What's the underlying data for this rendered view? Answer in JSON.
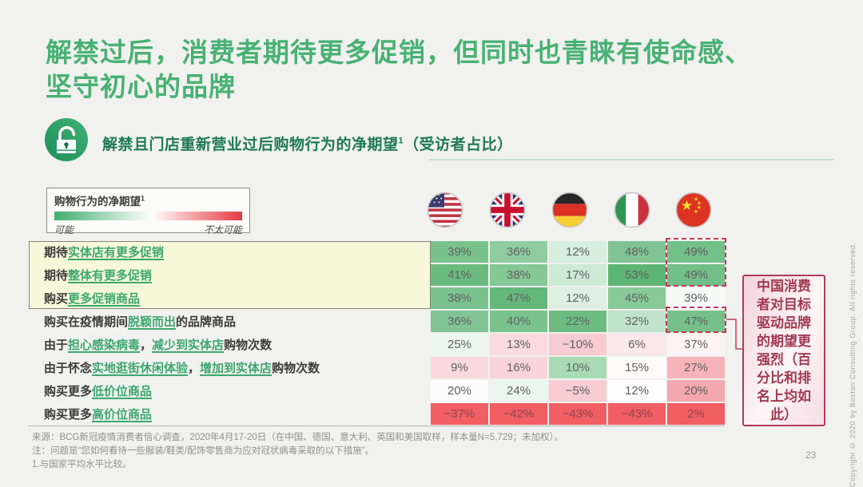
{
  "slide": {
    "title_lines": [
      "解禁过后，消费者期待更多促销，但同时也青睐有使命感、",
      "坚守初心的品牌"
    ],
    "page_number": "23",
    "copyright_vertical": "Copyright © 2020 by Boston Consulting Group. All rights reserved."
  },
  "header": {
    "icon": "unlocked-padlock-icon",
    "subtitle_main": "解禁且门店重新营业过后购物行为的净期望",
    "subtitle_sup": "1",
    "subtitle_tail": "（受访者占比）"
  },
  "legend": {
    "title": "购物行为的净期望",
    "title_sup": "1",
    "left_label": "可能",
    "right_label": "不太可能",
    "gradient_colors": [
      "#44ae6f",
      "#ffffff",
      "#e63940"
    ]
  },
  "annotation": {
    "text": "中国消费者对目标驱动品牌的期望更强烈（百分比和排名上均如此）",
    "border_color": "#b23a59",
    "text_color": "#a23a52",
    "dash_color": "#c23a55"
  },
  "notes": [
    "来源：BCG新冠疫情消费者信心调查，2020年4月17-20日（在中国、德国、意大利、英国和美国取样，样本量N=5,729；未加权）。",
    "注：问题是“您如何看待一些服装/鞋类/配饰零售商为应对冠状病毒采取的以下措施”。",
    "1.与国家平均水平比较。"
  ],
  "chart_data": {
    "type": "heatmap",
    "title": "解禁且门店重新营业过后购物行为的净期望1（受访者占比）",
    "legend": {
      "low": "不太可能",
      "high": "可能"
    },
    "columns": [
      "us-flag",
      "uk-flag",
      "germany-flag",
      "italy-flag",
      "china-flag"
    ],
    "value_text_color": "#5f6163",
    "negative_row_text_color": "#8f474d",
    "rows": [
      {
        "highlighted": true,
        "label_segments": [
          {
            "text": "期待",
            "emph": false
          },
          {
            "text": "实体店有更多促销",
            "emph": true
          }
        ],
        "values": [
          "39%",
          "36%",
          "12%",
          "48%",
          "49%"
        ],
        "colors": [
          "#79c28c",
          "#90cc9f",
          "#d8eedd",
          "#7fc492",
          "#74c089"
        ]
      },
      {
        "highlighted": true,
        "label_segments": [
          {
            "text": "期待",
            "emph": false
          },
          {
            "text": "整体有更多促销",
            "emph": true
          }
        ],
        "values": [
          "41%",
          "38%",
          "17%",
          "53%",
          "49%"
        ],
        "colors": [
          "#6bbb80",
          "#85c795",
          "#cdead5",
          "#5db575",
          "#72bf87"
        ]
      },
      {
        "highlighted": true,
        "label_segments": [
          {
            "text": "购买",
            "emph": false
          },
          {
            "text": "更多促销商品",
            "emph": true
          }
        ],
        "values": [
          "38%",
          "47%",
          "12%",
          "45%",
          "39%"
        ],
        "colors": [
          "#7bc38e",
          "#64b87b",
          "#def0e2",
          "#88c998",
          "#f7fbf8"
        ]
      },
      {
        "highlighted": false,
        "label_segments": [
          {
            "text": "购买在疫情期间",
            "emph": false
          },
          {
            "text": "脱颖而出",
            "emph": true
          },
          {
            "text": "的品牌商品",
            "emph": false
          }
        ],
        "values": [
          "36%",
          "40%",
          "22%",
          "32%",
          "47%"
        ],
        "colors": [
          "#80c593",
          "#7bc38e",
          "#6dbd83",
          "#c2e3cb",
          "#76c18b"
        ]
      },
      {
        "highlighted": false,
        "label_segments": [
          {
            "text": "由于",
            "emph": false
          },
          {
            "text": "担心感染病毒",
            "emph": true
          },
          {
            "text": "，",
            "emph": false
          },
          {
            "text": "减少到实体店",
            "emph": true
          },
          {
            "text": "购物次数",
            "emph": false
          }
        ],
        "values": [
          "25%",
          "13%",
          "−10%",
          "6%",
          "37%"
        ],
        "colors": [
          "#eaf6ee",
          "#f9dade",
          "#f7cbd0",
          "#fbe8ea",
          "#fdf3f4"
        ]
      },
      {
        "highlighted": false,
        "label_segments": [
          {
            "text": "由于怀念",
            "emph": false
          },
          {
            "text": "实地逛街休闲体验",
            "emph": true
          },
          {
            "text": "，",
            "emph": false
          },
          {
            "text": "增加到实体店",
            "emph": true
          },
          {
            "text": "购物次数",
            "emph": false
          }
        ],
        "values": [
          "9%",
          "16%",
          "10%",
          "15%",
          "27%"
        ],
        "colors": [
          "#f9d9dd",
          "#f8d4d8",
          "#a8dbb5",
          "#fefafa",
          "#f6b3b9"
        ]
      },
      {
        "highlighted": false,
        "label_segments": [
          {
            "text": "购买更多",
            "emph": false
          },
          {
            "text": "低价位商品",
            "emph": true
          }
        ],
        "values": [
          "20%",
          "24%",
          "−5%",
          "12%",
          "20%"
        ],
        "colors": [
          "#fdfcfc",
          "#ebf6ef",
          "#f7cdd2",
          "#fefcfc",
          "#f4a7ae"
        ]
      },
      {
        "highlighted": false,
        "negative": true,
        "label_segments": [
          {
            "text": "购买更多",
            "emph": false
          },
          {
            "text": "高价位商品",
            "emph": true
          }
        ],
        "values": [
          "−37%",
          "−42%",
          "−43%",
          "−43%",
          "2%"
        ],
        "colors": [
          "#f15e64",
          "#f15e64",
          "#f15e64",
          "#f15e64",
          "#f15e64"
        ]
      }
    ]
  }
}
